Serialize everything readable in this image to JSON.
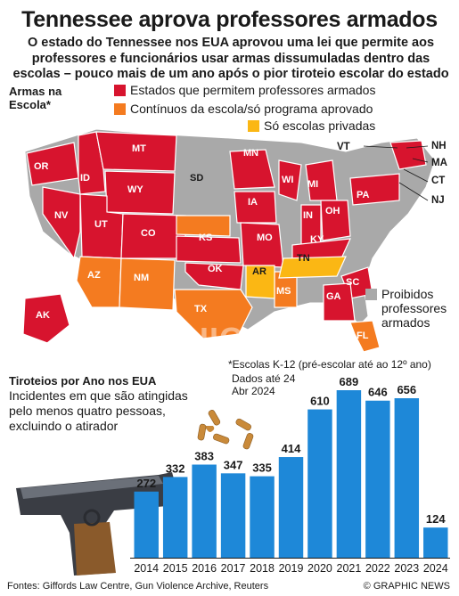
{
  "header": {
    "title": "Tennessee aprova professores armados",
    "subtitle": "O estado do Tennessee nos EUA aprovou uma lei que permite aos professores e funcionários usar armas dissumuladas dentro das escolas – pouco mais de um ano após o pior tiroteio escolar do estado"
  },
  "map": {
    "title": "Armas na\nEscola*",
    "legend": [
      {
        "label": "Estados que permitem professores armados",
        "color": "#d7142e"
      },
      {
        "label": "Contínuos da escola/só programa aprovado",
        "color": "#f47b20"
      },
      {
        "label": "Só escolas privadas",
        "color": "#fbb714"
      }
    ],
    "banned_label": "Proibidos professores armados",
    "banned_color": "#a9a9a9",
    "note": "*Escolas K-12 (pré-escolar até ao 12º ano)",
    "state_labels": [
      "OR",
      "ID",
      "MT",
      "WY",
      "NV",
      "UT",
      "CO",
      "AZ",
      "NM",
      "TX",
      "SD",
      "KS",
      "OK",
      "MN",
      "IA",
      "MO",
      "AR",
      "MS",
      "WI",
      "MI",
      "IN",
      "OH",
      "KY",
      "TN",
      "PA",
      "SC",
      "GA",
      "FL",
      "AK"
    ],
    "external_labels": [
      "VT",
      "NH",
      "MA",
      "CT",
      "NJ"
    ]
  },
  "chart": {
    "title": "Tiroteios por Ano nos EUA",
    "subtitle": "Incidentes em que são atingidas pelo menos quatro pessoas, excluindo o atirador",
    "date_note": "Dados até 24 Abr 2024"
  },
  "chart_data": {
    "type": "bar",
    "title": "Tiroteios por Ano nos EUA",
    "categories": [
      "2014",
      "2015",
      "2016",
      "2017",
      "2018",
      "2019",
      "2020",
      "2021",
      "2022",
      "2023",
      "2024"
    ],
    "values": [
      272,
      332,
      383,
      347,
      335,
      414,
      610,
      689,
      646,
      656,
      124
    ],
    "ylim": [
      0,
      700
    ],
    "bar_color": "#1e88d8",
    "grid": false
  },
  "footer": {
    "sources": "Fontes: Giffords Law Centre, Gun Violence Archive, Reuters",
    "credit": "© GRAPHIC NEWS"
  }
}
